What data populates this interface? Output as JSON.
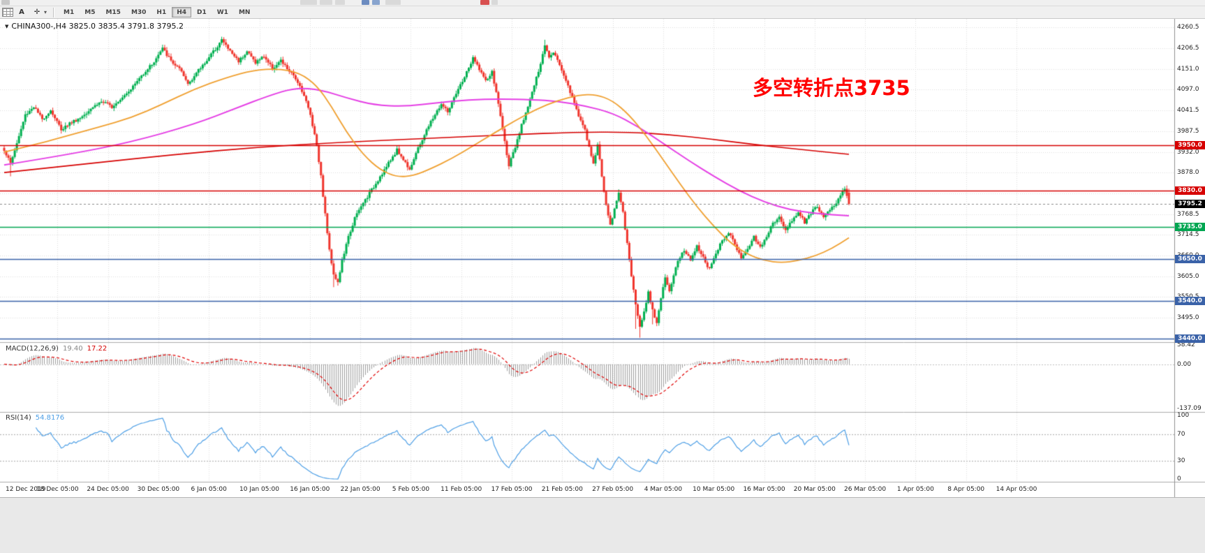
{
  "toolbar": {
    "timeframes": [
      "M1",
      "M5",
      "M15",
      "M30",
      "H1",
      "H4",
      "D1",
      "W1",
      "MN"
    ],
    "active_timeframe": "H4",
    "tools": [
      {
        "name": "text-tool",
        "label": "A"
      },
      {
        "name": "crosshair-tool",
        "label": "✛"
      }
    ]
  },
  "chart": {
    "title": "CHINA300-,H4  3825.0 3835.4 3791.8 3795.2",
    "annotation": {
      "text": "多空转折点3735",
      "color": "#FF0000"
    },
    "price_axis_labels": [
      "4260.5",
      "4206.5",
      "4151.0",
      "4097.0",
      "4041.5",
      "3987.5",
      "3932.0",
      "3878.0",
      "3822.5",
      "3768.5",
      "3714.5",
      "3660.0",
      "3605.0",
      "3550.5",
      "3495.0",
      "3440.5"
    ],
    "levels": [
      {
        "price": 3950.0,
        "label": "3950.0",
        "color": "#D60000"
      },
      {
        "price": 3830.0,
        "label": "3830.0",
        "color": "#D60000"
      },
      {
        "price": 3735.0,
        "label": "3735.0",
        "color": "#00A651"
      },
      {
        "price": 3650.0,
        "label": "3650.0",
        "color": "#3A62A8"
      },
      {
        "price": 3540.0,
        "label": "3540.0",
        "color": "#3A62A8"
      },
      {
        "price": 3440.0,
        "label": "3440.0",
        "color": "#3A62A8"
      }
    ],
    "current_price": {
      "value": 3795.2,
      "label": "3795.2",
      "color": "#000000"
    },
    "time_axis_labels": [
      "12 Dec 2019",
      "18 Dec 05:00",
      "24 Dec 05:00",
      "30 Dec 05:00",
      "6 Jan 05:00",
      "10 Jan 05:00",
      "16 Jan 05:00",
      "22 Jan 05:00",
      "5 Feb 05:00",
      "11 Feb 05:00",
      "17 Feb 05:00",
      "21 Feb 05:00",
      "27 Feb 05:00",
      "4 Mar 05:00",
      "10 Mar 05:00",
      "16 Mar 05:00",
      "20 Mar 05:00",
      "26 Mar 05:00",
      "1 Apr 05:00",
      "8 Apr 05:00",
      "14 Apr 05:00"
    ]
  },
  "macd": {
    "name": "MACD(12,26,9)",
    "main_value": "19.40",
    "signal_value": "17.22",
    "axis": [
      "58.42",
      "0.00",
      "-137.09"
    ]
  },
  "rsi": {
    "name": "RSI(14)",
    "value": "54.8176",
    "axis": [
      "100",
      "70",
      "30",
      "0"
    ]
  },
  "chart_data": {
    "type": "candlestick",
    "symbol": "CHINA300-",
    "timeframe": "H4",
    "ohlc_current": {
      "open": 3825.0,
      "high": 3835.4,
      "low": 3791.8,
      "close": 3795.2
    },
    "bars": 401,
    "price_range": [
      3435,
      4275
    ],
    "colors": {
      "up": "#00B050",
      "down": "#F0342C",
      "ma_fast": "#F0A030",
      "ma_mid": "#E53FE5",
      "ma_slow": "#D60000",
      "macd_hist": "#9E9E9E",
      "macd_signal": "#E00000",
      "rsi": "#4D9FE6"
    },
    "close_waypoints": [
      [
        0,
        3938
      ],
      [
        3,
        3902
      ],
      [
        6,
        3955
      ],
      [
        10,
        4030
      ],
      [
        14,
        4052
      ],
      [
        18,
        4018
      ],
      [
        22,
        4042
      ],
      [
        27,
        3992
      ],
      [
        31,
        4008
      ],
      [
        36,
        4022
      ],
      [
        41,
        4048
      ],
      [
        46,
        4065
      ],
      [
        51,
        4052
      ],
      [
        56,
        4078
      ],
      [
        61,
        4105
      ],
      [
        66,
        4140
      ],
      [
        71,
        4170
      ],
      [
        75,
        4205
      ],
      [
        79,
        4172
      ],
      [
        83,
        4150
      ],
      [
        87,
        4112
      ],
      [
        91,
        4140
      ],
      [
        95,
        4168
      ],
      [
        99,
        4196
      ],
      [
        103,
        4228
      ],
      [
        107,
        4198
      ],
      [
        111,
        4172
      ],
      [
        115,
        4198
      ],
      [
        119,
        4168
      ],
      [
        123,
        4185
      ],
      [
        127,
        4152
      ],
      [
        131,
        4172
      ],
      [
        135,
        4145
      ],
      [
        139,
        4118
      ],
      [
        142,
        4082
      ],
      [
        145,
        4030
      ],
      [
        148,
        3952
      ],
      [
        150,
        3868
      ],
      [
        152,
        3768
      ],
      [
        154,
        3672
      ],
      [
        156,
        3612
      ],
      [
        158,
        3588
      ],
      [
        160,
        3645
      ],
      [
        163,
        3708
      ],
      [
        166,
        3758
      ],
      [
        170,
        3798
      ],
      [
        174,
        3832
      ],
      [
        178,
        3868
      ],
      [
        182,
        3902
      ],
      [
        186,
        3938
      ],
      [
        189,
        3912
      ],
      [
        192,
        3888
      ],
      [
        195,
        3928
      ],
      [
        199,
        3978
      ],
      [
        203,
        4022
      ],
      [
        207,
        4058
      ],
      [
        210,
        4038
      ],
      [
        213,
        4072
      ],
      [
        216,
        4108
      ],
      [
        219,
        4142
      ],
      [
        222,
        4178
      ],
      [
        225,
        4152
      ],
      [
        228,
        4118
      ],
      [
        231,
        4142
      ],
      [
        233,
        4088
      ],
      [
        235,
        4028
      ],
      [
        237,
        3958
      ],
      [
        239,
        3898
      ],
      [
        242,
        3942
      ],
      [
        245,
        4002
      ],
      [
        248,
        4055
      ],
      [
        251,
        4108
      ],
      [
        254,
        4162
      ],
      [
        256,
        4215
      ],
      [
        258,
        4185
      ],
      [
        260,
        4198
      ],
      [
        263,
        4162
      ],
      [
        266,
        4122
      ],
      [
        269,
        4075
      ],
      [
        272,
        4030
      ],
      [
        275,
        3988
      ],
      [
        277,
        3942
      ],
      [
        279,
        3902
      ],
      [
        281,
        3952
      ],
      [
        283,
        3868
      ],
      [
        285,
        3792
      ],
      [
        287,
        3738
      ],
      [
        289,
        3782
      ],
      [
        291,
        3828
      ],
      [
        293,
        3772
      ],
      [
        295,
        3688
      ],
      [
        297,
        3608
      ],
      [
        299,
        3528
      ],
      [
        301,
        3475
      ],
      [
        303,
        3512
      ],
      [
        305,
        3562
      ],
      [
        307,
        3518
      ],
      [
        309,
        3482
      ],
      [
        311,
        3548
      ],
      [
        313,
        3598
      ],
      [
        315,
        3562
      ],
      [
        317,
        3608
      ],
      [
        319,
        3648
      ],
      [
        322,
        3672
      ],
      [
        325,
        3648
      ],
      [
        328,
        3688
      ],
      [
        331,
        3652
      ],
      [
        334,
        3622
      ],
      [
        337,
        3665
      ],
      [
        340,
        3698
      ],
      [
        343,
        3722
      ],
      [
        346,
        3688
      ],
      [
        349,
        3652
      ],
      [
        352,
        3678
      ],
      [
        355,
        3708
      ],
      [
        358,
        3682
      ],
      [
        361,
        3712
      ],
      [
        364,
        3742
      ],
      [
        367,
        3762
      ],
      [
        370,
        3728
      ],
      [
        373,
        3752
      ],
      [
        376,
        3772
      ],
      [
        379,
        3748
      ],
      [
        382,
        3772
      ],
      [
        385,
        3788
      ],
      [
        388,
        3762
      ],
      [
        391,
        3778
      ],
      [
        394,
        3798
      ],
      [
        396,
        3822
      ],
      [
        398,
        3832
      ],
      [
        400,
        3795
      ]
    ],
    "spikes": [
      {
        "b": 3,
        "low": 3868
      },
      {
        "b": 103,
        "high": 4236
      },
      {
        "b": 156,
        "low": 3576
      },
      {
        "b": 158,
        "low": 3580
      },
      {
        "b": 256,
        "high": 4228
      },
      {
        "b": 299,
        "low": 3466
      },
      {
        "b": 301,
        "low": 3443
      },
      {
        "b": 307,
        "low": 3478
      },
      {
        "b": 397,
        "high": 3836
      }
    ],
    "ma_lines": [
      {
        "name": "ma-slow-red",
        "color": "#D60000",
        "width": 1.6,
        "points": [
          [
            0,
            3878
          ],
          [
            40,
            3902
          ],
          [
            80,
            3925
          ],
          [
            120,
            3945
          ],
          [
            160,
            3958
          ],
          [
            200,
            3968
          ],
          [
            240,
            3978
          ],
          [
            270,
            3984
          ],
          [
            295,
            3985
          ],
          [
            315,
            3978
          ],
          [
            335,
            3966
          ],
          [
            355,
            3952
          ],
          [
            375,
            3940
          ],
          [
            400,
            3926
          ]
        ]
      },
      {
        "name": "ma-mid-magenta",
        "color": "#E53FE5",
        "width": 2.0,
        "points": [
          [
            0,
            3898
          ],
          [
            30,
            3925
          ],
          [
            60,
            3958
          ],
          [
            90,
            4005
          ],
          [
            110,
            4048
          ],
          [
            125,
            4080
          ],
          [
            138,
            4102
          ],
          [
            150,
            4096
          ],
          [
            162,
            4075
          ],
          [
            175,
            4056
          ],
          [
            190,
            4052
          ],
          [
            205,
            4062
          ],
          [
            220,
            4070
          ],
          [
            235,
            4072
          ],
          [
            250,
            4070
          ],
          [
            262,
            4066
          ],
          [
            275,
            4054
          ],
          [
            288,
            4035
          ],
          [
            300,
            4000
          ],
          [
            312,
            3955
          ],
          [
            324,
            3910
          ],
          [
            336,
            3868
          ],
          [
            348,
            3830
          ],
          [
            360,
            3800
          ],
          [
            372,
            3780
          ],
          [
            384,
            3770
          ],
          [
            400,
            3764
          ]
        ]
      },
      {
        "name": "ma-fast-orange",
        "color": "#F0A030",
        "width": 1.8,
        "points": [
          [
            0,
            3932
          ],
          [
            15,
            3952
          ],
          [
            30,
            3975
          ],
          [
            45,
            3998
          ],
          [
            60,
            4022
          ],
          [
            75,
            4058
          ],
          [
            90,
            4098
          ],
          [
            105,
            4128
          ],
          [
            118,
            4148
          ],
          [
            130,
            4152
          ],
          [
            140,
            4140
          ],
          [
            148,
            4108
          ],
          [
            155,
            4052
          ],
          [
            162,
            3985
          ],
          [
            170,
            3925
          ],
          [
            178,
            3885
          ],
          [
            186,
            3866
          ],
          [
            194,
            3870
          ],
          [
            202,
            3888
          ],
          [
            212,
            3915
          ],
          [
            222,
            3948
          ],
          [
            232,
            3982
          ],
          [
            242,
            4015
          ],
          [
            252,
            4045
          ],
          [
            262,
            4068
          ],
          [
            272,
            4082
          ],
          [
            280,
            4084
          ],
          [
            288,
            4068
          ],
          [
            296,
            4030
          ],
          [
            304,
            3975
          ],
          [
            312,
            3912
          ],
          [
            320,
            3848
          ],
          [
            328,
            3788
          ],
          [
            336,
            3736
          ],
          [
            344,
            3692
          ],
          [
            352,
            3662
          ],
          [
            360,
            3646
          ],
          [
            368,
            3640
          ],
          [
            376,
            3646
          ],
          [
            384,
            3658
          ],
          [
            392,
            3678
          ],
          [
            400,
            3706
          ]
        ]
      }
    ]
  }
}
